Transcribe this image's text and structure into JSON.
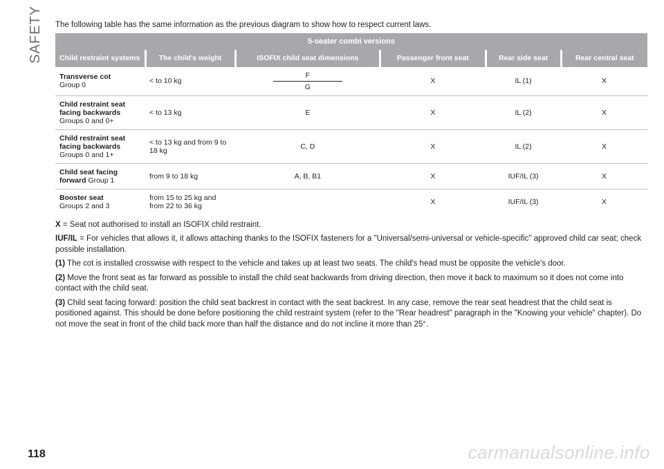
{
  "side_label": "SAFETY",
  "intro": "The following table has the same information as the previous diagram to show how to respect current laws.",
  "page_number": "118",
  "watermark": "carmanualsonline.info",
  "table": {
    "title": "5-seater combi versions",
    "headers": [
      "Child restraint systems",
      "The child's weight",
      "ISOFIX child seat dimensions",
      "Passenger front seat",
      "Rear side seat",
      "Rear central seat"
    ],
    "rows": [
      {
        "system_bold": "Transverse cot",
        "system_rest": "Group 0",
        "weight": "< to 10 kg",
        "dims_split": [
          "F",
          "G"
        ],
        "front": "X",
        "side": "IL (1)",
        "central": "X"
      },
      {
        "system_bold": "Child restraint seat facing backwards",
        "system_rest": "Groups 0 and 0+",
        "weight": "< to 13 kg",
        "dims": "E",
        "front": "X",
        "side": "IL (2)",
        "central": "X"
      },
      {
        "system_bold": "Child restraint seat facing backwards",
        "system_rest": "Groups 0 and 1+",
        "weight": "< to 13 kg and from 9 to 18 kg",
        "dims": "C, D",
        "front": "X",
        "side": "IL (2)",
        "central": "X"
      },
      {
        "system_bold": "Child seat facing forward",
        "system_rest": " Group 1",
        "system_inline": true,
        "weight": "from 9 to 18 kg",
        "dims": "A, B, B1",
        "front": "X",
        "side": "IUF/IL (3)",
        "central": "X"
      },
      {
        "system_bold": "Booster seat",
        "system_rest": "Groups 2 and 3",
        "weight": "from 15 to 25 kg and from 22 to 36 kg",
        "dims": "",
        "front": "X",
        "side": "IUF/IL (3)",
        "central": "X"
      }
    ]
  },
  "notes": {
    "x_label": "X",
    "x_text": " = Seat not authorised to install an ISOFIX child restraint.",
    "iuf_label": "IUF/IL",
    "iuf_text": " = For vehicles that allows it, it allows attaching thanks to the ISOFIX fasteners for a \"Universal/semi-universal or vehicle-specific\" approved child car seat; check possible installation.",
    "n1_label": "(1)",
    "n1_text": " The cot is installed crosswise with respect to the vehicle and takes up at least two seats. The child's head must be opposite the vehicle's door.",
    "n2_label": "(2)",
    "n2_text": " Move the front seat as far forward as possible to install the child seat backwards from driving direction, then move it back to maximum so it does not come into contact with the child seat.",
    "n3_label": "(3)",
    "n3_text": " Child seat facing forward: position the child seat backrest in contact with the seat backrest. In any case, remove the rear seat headrest that the child seat is positioned against. This should be done before positioning the child restraint system (refer to the \"Rear headrest\" paragraph in the \"Knowing your vehicle\" chapter). Do not move the seat in front of the child back more than half the distance and do not incline it more than 25°."
  }
}
